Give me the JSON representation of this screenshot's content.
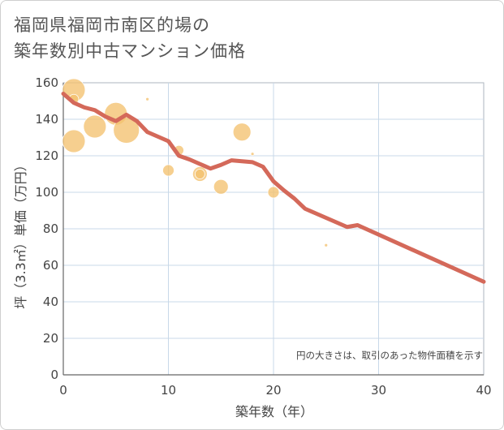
{
  "title_lines": [
    "福岡県福岡市南区的場の",
    "築年数別中古マンション価格"
  ],
  "note": "円の大きさは、取引のあった物件面積を示す",
  "chart_data": {
    "type": "scatter",
    "title": "福岡県福岡市南区的場の築年数別中古マンション価格",
    "xlabel": "築年数（年）",
    "ylabel": "坪（3.3㎡）単価（万円）",
    "xlim": [
      0,
      40
    ],
    "ylim": [
      0,
      160
    ],
    "x_ticks": [
      "0",
      "10",
      "20",
      "30",
      "40"
    ],
    "y_ticks": [
      "0",
      "20",
      "40",
      "60",
      "80",
      "100",
      "120",
      "140",
      "160"
    ],
    "grid": true,
    "colors": {
      "bubble": "#f4c16f",
      "line": "#d4695a",
      "grid": "#c8d8e8",
      "frame": "#aeb6bf"
    },
    "points": [
      {
        "x": 1,
        "y": 156,
        "size": 14
      },
      {
        "x": 1,
        "y": 151,
        "size": 6
      },
      {
        "x": 1,
        "y": 128,
        "size": 14
      },
      {
        "x": 3,
        "y": 136,
        "size": 14
      },
      {
        "x": 5,
        "y": 143,
        "size": 14
      },
      {
        "x": 6,
        "y": 134,
        "size": 16
      },
      {
        "x": 8,
        "y": 151,
        "size": 2
      },
      {
        "x": 10,
        "y": 112,
        "size": 7
      },
      {
        "x": 11,
        "y": 123,
        "size": 6
      },
      {
        "x": 13,
        "y": 110,
        "size": 9
      },
      {
        "x": 13,
        "y": 110,
        "size": 6
      },
      {
        "x": 15,
        "y": 103,
        "size": 9
      },
      {
        "x": 17,
        "y": 133,
        "size": 11
      },
      {
        "x": 18,
        "y": 121,
        "size": 2
      },
      {
        "x": 20,
        "y": 100,
        "size": 7
      },
      {
        "x": 25,
        "y": 71,
        "size": 2
      }
    ],
    "series": [
      {
        "type": "line",
        "x": [
          0,
          1,
          2,
          3,
          4,
          5,
          6,
          7,
          8,
          9,
          10,
          11,
          12,
          13,
          14,
          15,
          16,
          17,
          18,
          19,
          20,
          21,
          22,
          23,
          24,
          25,
          26,
          27,
          28,
          40
        ],
        "values": [
          154,
          149,
          146.5,
          145,
          141.5,
          139,
          142.5,
          139,
          133,
          130.5,
          128,
          120,
          118,
          115.5,
          113,
          115,
          117.5,
          117,
          116.5,
          114,
          106,
          101,
          96.5,
          91,
          88.5,
          86,
          83.5,
          81,
          82,
          51
        ]
      }
    ]
  }
}
